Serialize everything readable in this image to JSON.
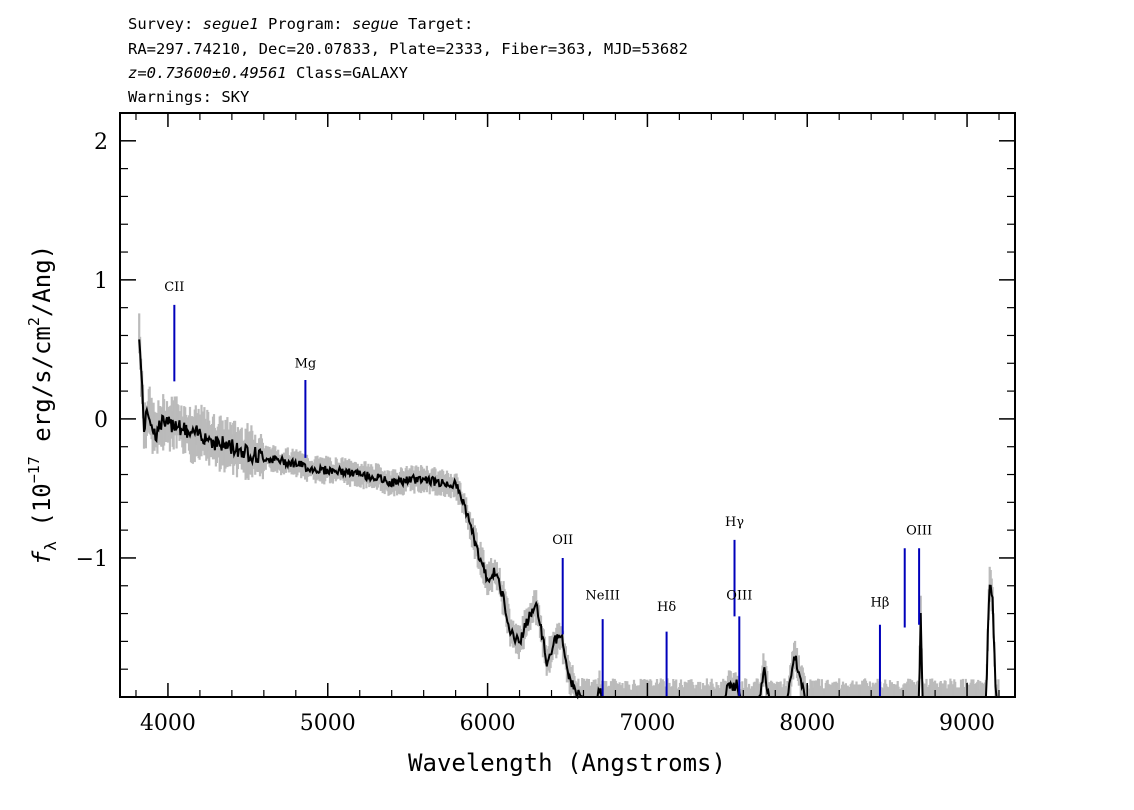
{
  "header": {
    "line1": {
      "survey_label": "Survey: ",
      "survey_value": "segue1",
      "program_label": " Program: ",
      "program_value": "segue",
      "target_label": " Target:"
    },
    "line2": "RA=297.74210, Dec=20.07833, Plate=2333, Fiber=363, MJD=53682",
    "line3": {
      "redshift": "z=0.73600±0.49561",
      "class_text": " Class=GALAXY"
    },
    "line4": "Warnings: SKY"
  },
  "chart_data": {
    "type": "line",
    "xlabel": "Wavelength (Angstroms)",
    "ylabel": {
      "f": "f",
      "sub": "λ",
      "pre": "(10",
      "exp": "−17",
      "mid": " erg/s/cm",
      "exp2": "2",
      "post": "/Ang)"
    },
    "xlim": [
      3700,
      9300
    ],
    "ylim": [
      -2.0,
      2.2
    ],
    "x_ticks": [
      {
        "value": 4000,
        "label": "4000"
      },
      {
        "value": 5000,
        "label": "5000"
      },
      {
        "value": 6000,
        "label": "6000"
      },
      {
        "value": 7000,
        "label": "7000"
      },
      {
        "value": 8000,
        "label": "8000"
      },
      {
        "value": 9000,
        "label": "9000"
      }
    ],
    "y_ticks": [
      {
        "value": 2,
        "label": "2"
      },
      {
        "value": 1,
        "label": "1"
      },
      {
        "value": 0,
        "label": "0"
      },
      {
        "value": -1,
        "label": "−1"
      }
    ],
    "series": [
      {
        "role": "flux",
        "color": "#000000",
        "noise_color": "#bbbbbb",
        "points": [
          [
            3820,
            0.62
          ],
          [
            3850,
            -0.05
          ],
          [
            3880,
            0.05
          ],
          [
            3920,
            -0.12
          ],
          [
            3960,
            -0.02
          ],
          [
            4000,
            -0.05
          ],
          [
            4050,
            -0.02
          ],
          [
            4100,
            -0.08
          ],
          [
            4150,
            -0.12
          ],
          [
            4200,
            -0.1
          ],
          [
            4300,
            -0.17
          ],
          [
            4400,
            -0.2
          ],
          [
            4500,
            -0.24
          ],
          [
            4600,
            -0.28
          ],
          [
            4700,
            -0.3
          ],
          [
            4800,
            -0.32
          ],
          [
            4900,
            -0.36
          ],
          [
            5000,
            -0.37
          ],
          [
            5100,
            -0.38
          ],
          [
            5200,
            -0.4
          ],
          [
            5300,
            -0.42
          ],
          [
            5400,
            -0.46
          ],
          [
            5500,
            -0.44
          ],
          [
            5600,
            -0.43
          ],
          [
            5700,
            -0.46
          ],
          [
            5800,
            -0.47
          ],
          [
            5850,
            -0.6
          ],
          [
            5900,
            -0.8
          ],
          [
            5950,
            -1.0
          ],
          [
            6000,
            -1.15
          ],
          [
            6050,
            -1.1
          ],
          [
            6100,
            -1.3
          ],
          [
            6150,
            -1.55
          ],
          [
            6200,
            -1.6
          ],
          [
            6250,
            -1.45
          ],
          [
            6300,
            -1.33
          ],
          [
            6330,
            -1.48
          ],
          [
            6370,
            -1.75
          ],
          [
            6420,
            -1.6
          ],
          [
            6460,
            -1.55
          ],
          [
            6500,
            -1.82
          ],
          [
            6560,
            -1.98
          ],
          [
            6600,
            -2.0
          ],
          [
            6690,
            -2.0
          ],
          [
            6700,
            -1.92
          ],
          [
            6710,
            -2.0
          ],
          [
            7490,
            -2.0
          ],
          [
            7500,
            -1.93
          ],
          [
            7560,
            -1.91
          ],
          [
            7580,
            -2.0
          ],
          [
            7700,
            -2.0
          ],
          [
            7730,
            -1.78
          ],
          [
            7760,
            -2.0
          ],
          [
            7880,
            -2.0
          ],
          [
            7920,
            -1.7
          ],
          [
            7950,
            -1.82
          ],
          [
            7990,
            -2.0
          ],
          [
            8700,
            -2.0
          ],
          [
            8710,
            -1.4
          ],
          [
            8720,
            -2.0
          ],
          [
            9120,
            -2.0
          ],
          [
            9140,
            -1.15
          ],
          [
            9160,
            -1.3
          ],
          [
            9180,
            -2.0
          ],
          [
            9200,
            -2.0
          ]
        ]
      }
    ],
    "emission_lines": [
      {
        "label": "CII",
        "x": 4040,
        "y_bottom": 0.27,
        "y_top": 0.82,
        "label_y": 0.92
      },
      {
        "label": "Mg",
        "x": 4860,
        "y_bottom": -0.28,
        "y_top": 0.28,
        "label_y": 0.37
      },
      {
        "label": "OII",
        "x": 6470,
        "y_bottom": -1.55,
        "y_top": -1.0,
        "label_y": -0.9
      },
      {
        "label": "NeIII",
        "x": 6720,
        "y_bottom": -2.0,
        "y_top": -1.44,
        "label_y": -1.3
      },
      {
        "label": "Hδ",
        "x": 7120,
        "y_bottom": -2.0,
        "y_top": -1.53,
        "label_y": -1.38
      },
      {
        "label": "Hγ",
        "x": 7545,
        "y_bottom": -1.42,
        "y_top": -0.87,
        "label_y": -0.77
      },
      {
        "label": "OIII",
        "x": 7575,
        "y_bottom": -2.0,
        "y_top": -1.42,
        "label_y": -1.3
      },
      {
        "label": "Hβ",
        "x": 8455,
        "y_bottom": -2.0,
        "y_top": -1.48,
        "label_y": -1.35
      },
      {
        "label": "",
        "x": 8610,
        "y_bottom": -1.5,
        "y_top": -0.93,
        "label_y": -0.93
      },
      {
        "label": "OIII",
        "x": 8700,
        "y_bottom": -1.48,
        "y_top": -0.93,
        "label_y": -0.83
      }
    ],
    "line_marker_color": "#0000bb",
    "grid": false,
    "legend": "none"
  }
}
